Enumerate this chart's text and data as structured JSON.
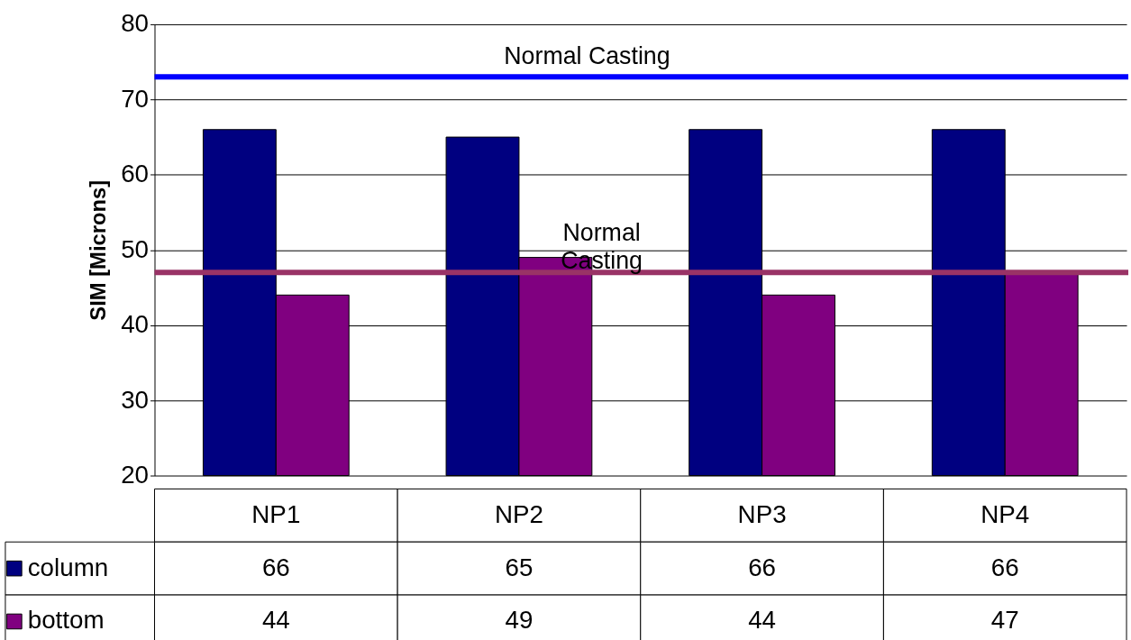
{
  "chart_data": {
    "type": "bar",
    "ylabel": "SIM [Microns]",
    "categories": [
      "NP1",
      "NP2",
      "NP3",
      "NP4"
    ],
    "series": [
      {
        "name": "column",
        "color": "#000080",
        "values": [
          66,
          65,
          66,
          66
        ]
      },
      {
        "name": "bottom",
        "color": "#800080",
        "values": [
          44,
          49,
          44,
          47
        ]
      }
    ],
    "ylim": [
      20,
      80
    ],
    "yticks": [
      20,
      30,
      40,
      50,
      60,
      70,
      80
    ],
    "grid": "y",
    "ref_lines": [
      {
        "axis": "y",
        "value": 73,
        "label": "Normal Casting",
        "color": "#0000ff"
      },
      {
        "axis": "y",
        "value": 47,
        "label": "Normal Casting",
        "color": "#993366"
      }
    ],
    "data_labels": true,
    "legend": "bottom left"
  }
}
